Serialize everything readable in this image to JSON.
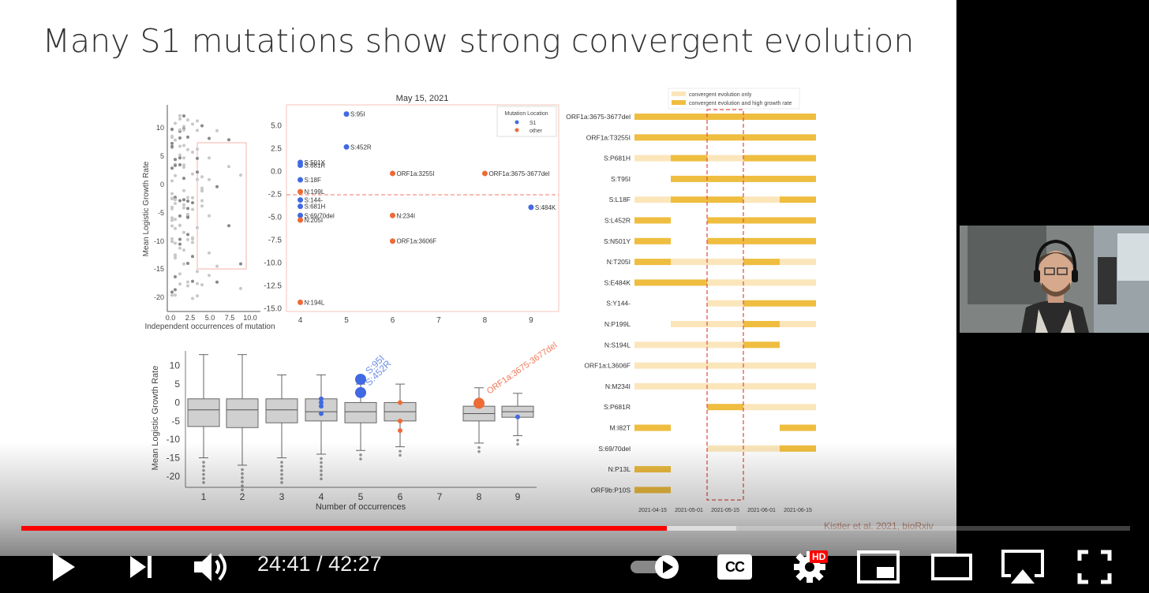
{
  "slide": {
    "title": "Many S1 mutations show strong convergent evolution",
    "citation": "Kistler et al. 2021, bioRxiv"
  },
  "scatter_small": {
    "ylabel": "Mean Logistic Growth Rate",
    "xlabel": "Independent occurrences of mutation",
    "yticks": [
      "10",
      "5",
      "0",
      "-5",
      "-10",
      "-15",
      "-20"
    ],
    "xticks": [
      "0.0",
      "2.5",
      "5.0",
      "7.5",
      "10.0"
    ]
  },
  "scatter_main": {
    "title": "May 15, 2021",
    "legend_title": "Mutation Location",
    "legend_s1": "S1",
    "legend_other": "other",
    "yticks": [
      "5.0",
      "2.5",
      "0.0",
      "-2.5",
      "-5.0",
      "-7.5",
      "-10.0",
      "-12.5",
      "-15.0"
    ],
    "xticks": [
      "4",
      "5",
      "6",
      "7",
      "8",
      "9"
    ],
    "colors": {
      "s1": "#4169e1",
      "other": "#ee6a36"
    },
    "points": [
      {
        "label": "S:95I",
        "x": 5,
        "y": 6.3,
        "loc": "s1"
      },
      {
        "label": "S:452R",
        "x": 5,
        "y": 2.7,
        "loc": "s1"
      },
      {
        "label": "S:501Y",
        "x": 4,
        "y": 1.0,
        "loc": "s1"
      },
      {
        "label": "S:681R",
        "x": 4,
        "y": 0.7,
        "loc": "s1"
      },
      {
        "label": "S:18F",
        "x": 4,
        "y": -0.9,
        "loc": "s1"
      },
      {
        "label": "ORF1a:3255I",
        "x": 6,
        "y": -0.2,
        "loc": "other"
      },
      {
        "label": "ORF1a:3675-3677del",
        "x": 8,
        "y": -0.2,
        "loc": "other"
      },
      {
        "label": "N:199L",
        "x": 4,
        "y": -2.2,
        "loc": "other"
      },
      {
        "label": "S:144-",
        "x": 4,
        "y": -3.1,
        "loc": "s1"
      },
      {
        "label": "S:681H",
        "x": 4,
        "y": -3.8,
        "loc": "s1"
      },
      {
        "label": "S:69/70del",
        "x": 4,
        "y": -4.8,
        "loc": "s1"
      },
      {
        "label": "N:205I",
        "x": 4,
        "y": -5.3,
        "loc": "other"
      },
      {
        "label": "N:234I",
        "x": 6,
        "y": -4.8,
        "loc": "other"
      },
      {
        "label": "S:484K",
        "x": 9,
        "y": -3.9,
        "loc": "s1"
      },
      {
        "label": "ORF1a:3606F",
        "x": 6,
        "y": -7.6,
        "loc": "other"
      },
      {
        "label": "N:194L",
        "x": 4,
        "y": -14.3,
        "loc": "other"
      }
    ]
  },
  "boxplot": {
    "ylabel": "Mean Logistic Growth Rate",
    "xlabel": "Number of occurrences",
    "yticks": [
      "10",
      "5",
      "0",
      "-5",
      "-10",
      "-15",
      "-20"
    ],
    "xticks": [
      "1",
      "2",
      "3",
      "4",
      "5",
      "6",
      "7",
      "8",
      "9"
    ],
    "annotations": [
      "S:95I",
      "S:452R",
      "ORF1a:3675-3677del"
    ]
  },
  "timeline": {
    "legend_light": "convergent evolution only",
    "legend_dark": "convergent evolution and high growth rate",
    "dates": [
      "2021-04-15",
      "2021-05-01",
      "2021-05-15",
      "2021-06-01",
      "2021-06-15"
    ],
    "rows": [
      {
        "label": "ORF1a:3675-3677del",
        "segments": [
          "D",
          "D",
          "D",
          "D",
          "D"
        ]
      },
      {
        "label": "ORF1a:T3255I",
        "segments": [
          "D",
          "D",
          "D",
          "D",
          "D"
        ]
      },
      {
        "label": "S:P681H",
        "segments": [
          "L",
          "D",
          "L",
          "D",
          "D"
        ]
      },
      {
        "label": "S:T95I",
        "segments": [
          "N",
          "D",
          "D",
          "D",
          "D"
        ]
      },
      {
        "label": "S:L18F",
        "segments": [
          "L",
          "D",
          "D",
          "L",
          "D"
        ]
      },
      {
        "label": "S:L452R",
        "segments": [
          "D",
          "N",
          "D",
          "D",
          "D"
        ]
      },
      {
        "label": "S:N501Y",
        "segments": [
          "D",
          "N",
          "D",
          "D",
          "D"
        ]
      },
      {
        "label": "N:T205I",
        "segments": [
          "D",
          "L",
          "L",
          "D",
          "L"
        ]
      },
      {
        "label": "S:E484K",
        "segments": [
          "D",
          "D",
          "L",
          "L",
          "L"
        ]
      },
      {
        "label": "S:Y144-",
        "segments": [
          "N",
          "N",
          "L",
          "D",
          "D"
        ]
      },
      {
        "label": "N:P199L",
        "segments": [
          "N",
          "L",
          "L",
          "D",
          "L"
        ]
      },
      {
        "label": "N:S194L",
        "segments": [
          "L",
          "L",
          "L",
          "D",
          "N"
        ]
      },
      {
        "label": "ORF1a:L3606F",
        "segments": [
          "L",
          "L",
          "L",
          "L",
          "L"
        ]
      },
      {
        "label": "N:M234I",
        "segments": [
          "L",
          "L",
          "L",
          "L",
          "L"
        ]
      },
      {
        "label": "S:P681R",
        "segments": [
          "N",
          "N",
          "D",
          "L",
          "L"
        ]
      },
      {
        "label": "M:I82T",
        "segments": [
          "D",
          "N",
          "N",
          "N",
          "D"
        ]
      },
      {
        "label": "S:69/70del",
        "segments": [
          "N",
          "N",
          "L",
          "L",
          "D"
        ]
      },
      {
        "label": "N:P13L",
        "segments": [
          "D",
          "N",
          "N",
          "N",
          "N"
        ]
      },
      {
        "label": "ORF9b:P10S",
        "segments": [
          "D",
          "N",
          "N",
          "N",
          "N"
        ]
      }
    ],
    "colors": {
      "light": "#fbe6bb",
      "dark": "#efbd3f"
    }
  },
  "player": {
    "current_time": "24:41",
    "separator": "/",
    "duration": "42:27",
    "played_fraction": 0.582,
    "buffered_fraction": 0.645,
    "hd_badge": "HD",
    "icons": {
      "play": "play-icon",
      "next": "next-icon",
      "volume": "volume-icon",
      "autoplay": "autoplay-toggle-icon",
      "cc": "cc-icon",
      "settings": "gear-icon",
      "miniplayer": "miniplayer-icon",
      "theater": "theater-icon",
      "airplay": "airplay-icon",
      "fullscreen": "fullscreen-icon"
    },
    "cc_label": "CC"
  }
}
